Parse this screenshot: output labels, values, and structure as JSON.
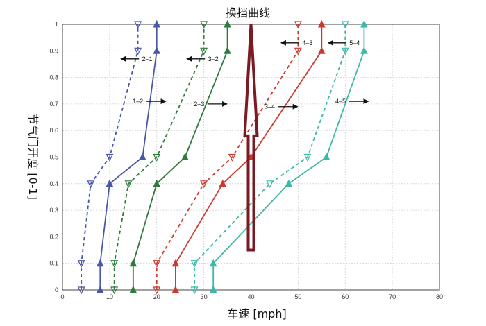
{
  "chart_data": {
    "type": "line",
    "title": "换挡曲线",
    "xlabel": "车速 [mph]",
    "ylabel": "节气门开度 [0-1]",
    "xlim": [
      0,
      80
    ],
    "ylim": [
      0,
      1
    ],
    "xticks": [
      "0",
      "10",
      "20",
      "30",
      "40",
      "50",
      "60",
      "70",
      "80"
    ],
    "yticks": [
      "0",
      "0.1",
      "0.2",
      "0.3",
      "0.4",
      "0.5",
      "0.6",
      "0.7",
      "0.8",
      "0.9",
      "1"
    ],
    "grid": true,
    "series": [
      {
        "name": "1–2",
        "style": "solid",
        "marker": "up-triangle",
        "color": "#4a56a6",
        "points": [
          [
            8,
            0
          ],
          [
            8,
            0.1
          ],
          [
            10,
            0.4
          ],
          [
            17,
            0.5
          ],
          [
            20,
            0.9
          ],
          [
            20,
            1
          ]
        ]
      },
      {
        "name": "2–1",
        "style": "dashed",
        "marker": "down-triangle",
        "color": "#4a56a6",
        "points": [
          [
            4,
            0
          ],
          [
            4,
            0.1
          ],
          [
            6,
            0.4
          ],
          [
            10,
            0.5
          ],
          [
            16,
            0.9
          ],
          [
            16,
            1
          ]
        ]
      },
      {
        "name": "2–3",
        "style": "solid",
        "marker": "up-triangle",
        "color": "#2e7a3c",
        "points": [
          [
            15,
            0
          ],
          [
            15,
            0.1
          ],
          [
            20,
            0.4
          ],
          [
            26,
            0.5
          ],
          [
            35,
            0.9
          ],
          [
            35,
            1
          ]
        ]
      },
      {
        "name": "3–2",
        "style": "dashed",
        "marker": "down-triangle",
        "color": "#2e7a3c",
        "points": [
          [
            11,
            0
          ],
          [
            11,
            0.1
          ],
          [
            14,
            0.4
          ],
          [
            20,
            0.5
          ],
          [
            30,
            0.9
          ],
          [
            30,
            1
          ]
        ]
      },
      {
        "name": "3–4",
        "style": "solid",
        "marker": "up-triangle",
        "color": "#cc3a2e",
        "points": [
          [
            24,
            0
          ],
          [
            24,
            0.1
          ],
          [
            34,
            0.4
          ],
          [
            40,
            0.5
          ],
          [
            55,
            0.9
          ],
          [
            55,
            1
          ]
        ]
      },
      {
        "name": "4–3",
        "style": "dashed",
        "marker": "down-triangle",
        "color": "#cc3a2e",
        "points": [
          [
            20,
            0
          ],
          [
            20,
            0.1
          ],
          [
            30,
            0.4
          ],
          [
            36,
            0.5
          ],
          [
            50,
            0.9
          ],
          [
            50,
            1
          ]
        ]
      },
      {
        "name": "4–5",
        "style": "solid",
        "marker": "up-triangle",
        "color": "#3db8a8",
        "points": [
          [
            32,
            0
          ],
          [
            32,
            0.1
          ],
          [
            48,
            0.4
          ],
          [
            56,
            0.5
          ],
          [
            64,
            0.9
          ],
          [
            64,
            1
          ]
        ]
      },
      {
        "name": "5–4",
        "style": "dashed",
        "marker": "down-triangle",
        "color": "#3db8a8",
        "points": [
          [
            28,
            0
          ],
          [
            28,
            0.1
          ],
          [
            44,
            0.4
          ],
          [
            52,
            0.5
          ],
          [
            60,
            0.9
          ],
          [
            60,
            1
          ]
        ]
      }
    ],
    "annotations": [
      {
        "text": "2–1",
        "x": 18,
        "y": 0.87,
        "arrow": "left"
      },
      {
        "text": "3–2",
        "x": 32,
        "y": 0.87,
        "arrow": "left"
      },
      {
        "text": "1–2",
        "x": 16,
        "y": 0.71,
        "arrow": "right"
      },
      {
        "text": "2–3",
        "x": 29,
        "y": 0.7,
        "arrow": "right"
      },
      {
        "text": "3–4",
        "x": 44,
        "y": 0.69,
        "arrow": "right"
      },
      {
        "text": "4–3",
        "x": 52,
        "y": 0.93,
        "arrow": "left"
      },
      {
        "text": "5–4",
        "x": 62,
        "y": 0.93,
        "arrow": "left"
      },
      {
        "text": "4–5",
        "x": 59,
        "y": 0.71,
        "arrow": "right"
      }
    ],
    "big_arrow": {
      "x": 40,
      "y_from": 0.15,
      "y_to": 1,
      "color": "#7a1a22"
    }
  }
}
